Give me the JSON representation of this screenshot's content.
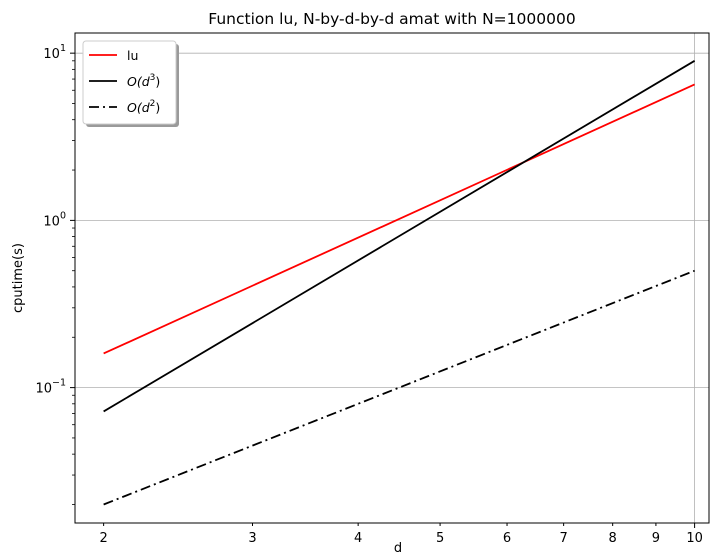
{
  "chart_data": {
    "type": "line",
    "title": "Function lu, N-by-d-by-d amat with N=1000000",
    "xlabel": "d",
    "ylabel": "cputime(s)",
    "xscale": "log",
    "yscale": "log",
    "xlim": [
      1.85,
      10.4
    ],
    "ylim": [
      0.0155,
      13.2
    ],
    "xticks": [
      2,
      3,
      4,
      5,
      6,
      7,
      8,
      9,
      10
    ],
    "yticks": [
      {
        "value": 0.1,
        "base": "10",
        "exp": "−1"
      },
      {
        "value": 1,
        "base": "10",
        "exp": "0"
      },
      {
        "value": 10,
        "base": "10",
        "exp": "1"
      }
    ],
    "grid": "major",
    "legend_position": "top-left",
    "series": [
      {
        "name": "lu",
        "legend_text": "lu",
        "color": "#ff0000",
        "style": "solid",
        "x": [
          2,
          10
        ],
        "y": [
          0.16,
          6.5
        ]
      },
      {
        "name": "O(d^3)",
        "legend_text": "O(d",
        "legend_sup": "3",
        "legend_tail": ")",
        "color": "#000000",
        "style": "solid",
        "x": [
          2,
          10
        ],
        "y": [
          0.072,
          9.0
        ]
      },
      {
        "name": "O(d^2)",
        "legend_text": "O(d",
        "legend_sup": "2",
        "legend_tail": ")",
        "color": "#000000",
        "style": "dashdot",
        "x": [
          2,
          10
        ],
        "y": [
          0.02,
          0.5
        ]
      }
    ]
  }
}
